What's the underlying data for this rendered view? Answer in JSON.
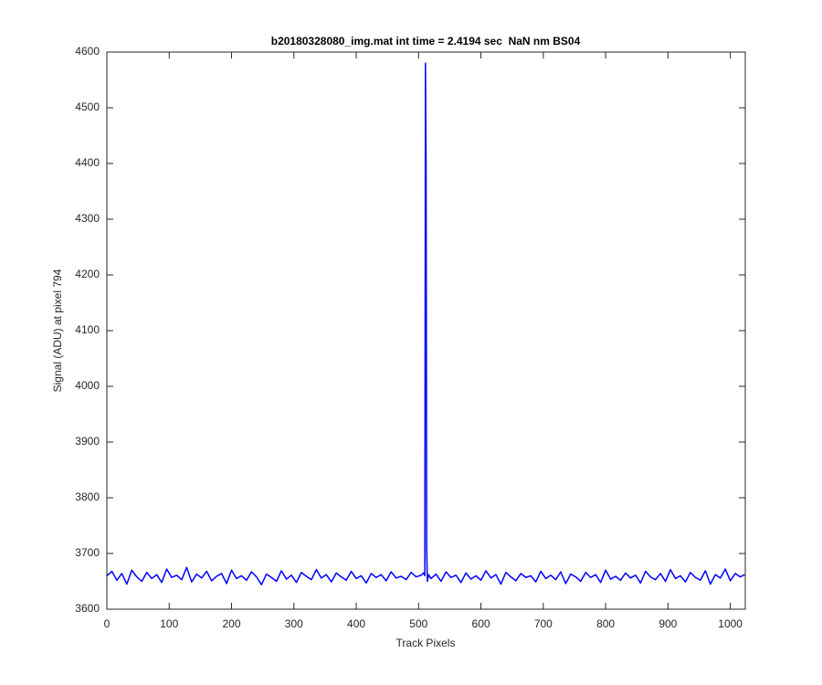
{
  "chart_data": {
    "type": "line",
    "title": "b20180328080_img.mat int time = 2.4194 sec  NaN nm BS04",
    "x_label": "Track Pixels",
    "y_label": "Signal (ADU) at pixel 794",
    "color": "#0000ff",
    "x": [
      0,
      8,
      16,
      24,
      32,
      40,
      48,
      56,
      64,
      72,
      80,
      88,
      96,
      104,
      112,
      120,
      128,
      136,
      144,
      152,
      160,
      168,
      176,
      184,
      192,
      200,
      208,
      216,
      224,
      232,
      240,
      248,
      256,
      264,
      272,
      280,
      288,
      296,
      304,
      312,
      320,
      328,
      336,
      344,
      352,
      360,
      368,
      376,
      384,
      392,
      400,
      408,
      416,
      424,
      432,
      440,
      448,
      456,
      464,
      472,
      480,
      488,
      496,
      504,
      508,
      510,
      511,
      512,
      513,
      514,
      516,
      520,
      528,
      536,
      544,
      552,
      560,
      568,
      576,
      584,
      592,
      600,
      608,
      616,
      624,
      632,
      640,
      648,
      656,
      664,
      672,
      680,
      688,
      696,
      704,
      712,
      720,
      728,
      736,
      744,
      752,
      760,
      768,
      776,
      784,
      792,
      800,
      808,
      816,
      824,
      832,
      840,
      848,
      856,
      864,
      872,
      880,
      888,
      896,
      904,
      912,
      920,
      928,
      936,
      944,
      952,
      960,
      968,
      976,
      984,
      992,
      1000,
      1008,
      1016,
      1023
    ],
    "values": [
      3660,
      3668,
      3652,
      3664,
      3645,
      3670,
      3658,
      3650,
      3666,
      3655,
      3662,
      3648,
      3672,
      3657,
      3661,
      3653,
      3675,
      3649,
      3663,
      3656,
      3668,
      3651,
      3659,
      3664,
      3646,
      3670,
      3655,
      3660,
      3652,
      3667,
      3658,
      3644,
      3663,
      3657,
      3650,
      3669,
      3654,
      3661,
      3648,
      3666,
      3659,
      3653,
      3671,
      3656,
      3662,
      3649,
      3665,
      3658,
      3652,
      3668,
      3655,
      3660,
      3647,
      3664,
      3657,
      3662,
      3651,
      3667,
      3656,
      3659,
      3653,
      3666,
      3658,
      3661,
      3665,
      3660,
      4580,
      4400,
      3710,
      3650,
      3662,
      3655,
      3663,
      3650,
      3667,
      3657,
      3661,
      3648,
      3665,
      3654,
      3660,
      3652,
      3669,
      3656,
      3662,
      3645,
      3666,
      3658,
      3651,
      3664,
      3657,
      3660,
      3649,
      3668,
      3655,
      3661,
      3653,
      3667,
      3646,
      3663,
      3658,
      3650,
      3666,
      3657,
      3662,
      3648,
      3670,
      3654,
      3659,
      3652,
      3665,
      3656,
      3661,
      3647,
      3668,
      3658,
      3653,
      3664,
      3650,
      3671,
      3655,
      3660,
      3649,
      3666,
      3657,
      3652,
      3669,
      3645,
      3662,
      3656,
      3672,
      3651,
      3664,
      3658,
      3662
    ],
    "xlim": [
      0,
      1024
    ],
    "xticks": [
      0,
      100,
      200,
      300,
      400,
      500,
      600,
      700,
      800,
      900,
      1000
    ],
    "ylim": [
      3600,
      4600
    ],
    "yticks": [
      3600,
      3700,
      3800,
      3900,
      4000,
      4100,
      4200,
      4300,
      4400,
      4500,
      4600
    ]
  }
}
